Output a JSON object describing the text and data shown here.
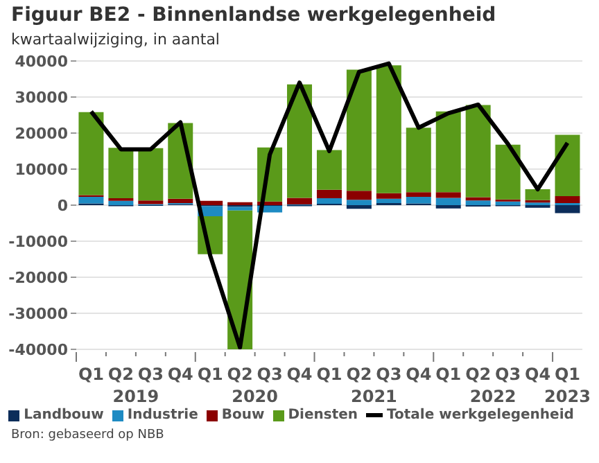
{
  "chart_data": {
    "type": "bar",
    "title": "Figuur BE2 - Binnenlandse werkgelegenheid",
    "subtitle": "kwartaalwijziging, in aantal",
    "categories": [
      "Q1",
      "Q2",
      "Q3",
      "Q4",
      "Q1",
      "Q2",
      "Q3",
      "Q4",
      "Q1",
      "Q2",
      "Q3",
      "Q4",
      "Q1",
      "Q2",
      "Q3",
      "Q4",
      "Q1"
    ],
    "stacked": true,
    "series": [
      {
        "name": "Landbouw",
        "color": "#0c2d5a",
        "values": [
          500,
          -300,
          -200,
          300,
          -300,
          -500,
          -200,
          -300,
          400,
          -1000,
          600,
          500,
          -900,
          -400,
          -300,
          -700,
          -2200
        ]
      },
      {
        "name": "Industrie",
        "color": "#1e8bc3",
        "values": [
          1800,
          1200,
          300,
          300,
          -2800,
          -1000,
          -1800,
          200,
          1500,
          1500,
          1200,
          1800,
          2000,
          1300,
          1000,
          700,
          600
        ]
      },
      {
        "name": "Bouw",
        "color": "#8b0000",
        "values": [
          500,
          700,
          1000,
          1200,
          1200,
          800,
          1000,
          1800,
          2400,
          2500,
          1500,
          1300,
          1600,
          900,
          600,
          700,
          1900
        ]
      },
      {
        "name": "Diensten",
        "color": "#5a9a1a",
        "values": [
          23000,
          14000,
          14500,
          21000,
          -10500,
          -38500,
          15000,
          31500,
          11000,
          33600,
          35500,
          17900,
          22400,
          25600,
          15200,
          3000,
          17000
        ]
      },
      {
        "name": "Totale werkgelegenheid",
        "type": "line",
        "color": "#000000",
        "values": [
          26000,
          15500,
          15500,
          23000,
          -14000,
          -39500,
          14000,
          34000,
          15000,
          37000,
          39300,
          21500,
          25500,
          27900,
          17000,
          4400,
          17300
        ]
      }
    ],
    "ylim": [
      -40000,
      40000
    ],
    "yticks": [
      -40000,
      -30000,
      -20000,
      -10000,
      0,
      10000,
      20000,
      30000,
      40000
    ],
    "grid": "y",
    "legend": "bottom",
    "annotations": [
      "2019",
      "2020",
      "2021",
      "2022",
      "2023",
      "Bron: gebaseerd op NBB"
    ]
  }
}
